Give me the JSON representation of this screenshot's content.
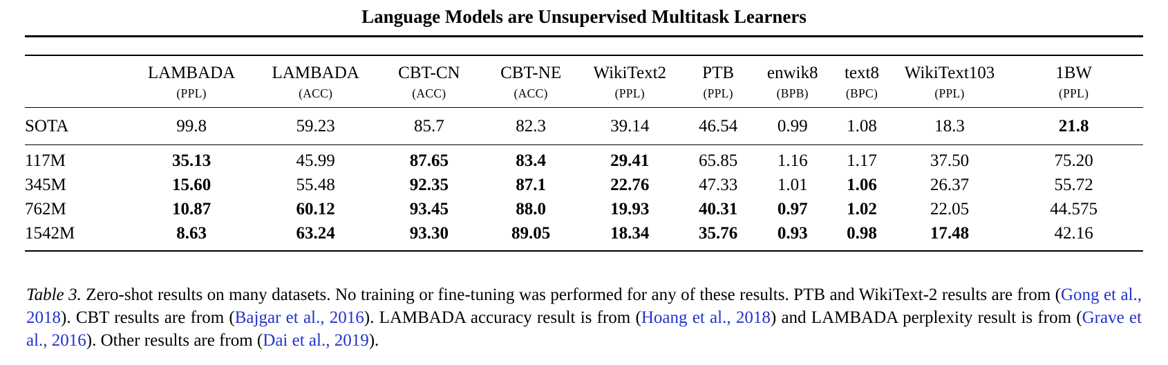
{
  "page": {
    "title": "Language Models are Unsupervised Multitask Learners"
  },
  "colors": {
    "cite": "#2233cc"
  },
  "table": {
    "columns": [
      {
        "name": "",
        "metric": ""
      },
      {
        "name": "LAMBADA",
        "metric": "(PPL)"
      },
      {
        "name": "LAMBADA",
        "metric": "(ACC)"
      },
      {
        "name": "CBT-CN",
        "metric": "(ACC)"
      },
      {
        "name": "CBT-NE",
        "metric": "(ACC)"
      },
      {
        "name": "WikiText2",
        "metric": "(PPL)"
      },
      {
        "name": "PTB",
        "metric": "(PPL)"
      },
      {
        "name": "enwik8",
        "metric": "(BPB)"
      },
      {
        "name": "text8",
        "metric": "(BPC)"
      },
      {
        "name": "WikiText103",
        "metric": "(PPL)"
      },
      {
        "name": "1BW",
        "metric": "(PPL)"
      }
    ],
    "sota_row": {
      "label": "SOTA",
      "cells": [
        {
          "v": "99.8",
          "b": false
        },
        {
          "v": "59.23",
          "b": false
        },
        {
          "v": "85.7",
          "b": false
        },
        {
          "v": "82.3",
          "b": false
        },
        {
          "v": "39.14",
          "b": false
        },
        {
          "v": "46.54",
          "b": false
        },
        {
          "v": "0.99",
          "b": false
        },
        {
          "v": "1.08",
          "b": false
        },
        {
          "v": "18.3",
          "b": false
        },
        {
          "v": "21.8",
          "b": true
        }
      ]
    },
    "rows": [
      {
        "label": "117M",
        "cells": [
          {
            "v": "35.13",
            "b": true
          },
          {
            "v": "45.99",
            "b": false
          },
          {
            "v": "87.65",
            "b": true
          },
          {
            "v": "83.4",
            "b": true
          },
          {
            "v": "29.41",
            "b": true
          },
          {
            "v": "65.85",
            "b": false
          },
          {
            "v": "1.16",
            "b": false
          },
          {
            "v": "1.17",
            "b": false
          },
          {
            "v": "37.50",
            "b": false
          },
          {
            "v": "75.20",
            "b": false
          }
        ]
      },
      {
        "label": "345M",
        "cells": [
          {
            "v": "15.60",
            "b": true
          },
          {
            "v": "55.48",
            "b": false
          },
          {
            "v": "92.35",
            "b": true
          },
          {
            "v": "87.1",
            "b": true
          },
          {
            "v": "22.76",
            "b": true
          },
          {
            "v": "47.33",
            "b": false
          },
          {
            "v": "1.01",
            "b": false
          },
          {
            "v": "1.06",
            "b": true
          },
          {
            "v": "26.37",
            "b": false
          },
          {
            "v": "55.72",
            "b": false
          }
        ]
      },
      {
        "label": "762M",
        "cells": [
          {
            "v": "10.87",
            "b": true
          },
          {
            "v": "60.12",
            "b": true
          },
          {
            "v": "93.45",
            "b": true
          },
          {
            "v": "88.0",
            "b": true
          },
          {
            "v": "19.93",
            "b": true
          },
          {
            "v": "40.31",
            "b": true
          },
          {
            "v": "0.97",
            "b": true
          },
          {
            "v": "1.02",
            "b": true
          },
          {
            "v": "22.05",
            "b": false
          },
          {
            "v": "44.575",
            "b": false
          }
        ]
      },
      {
        "label": "1542M",
        "cells": [
          {
            "v": "8.63",
            "b": true
          },
          {
            "v": "63.24",
            "b": true
          },
          {
            "v": "93.30",
            "b": true
          },
          {
            "v": "89.05",
            "b": true
          },
          {
            "v": "18.34",
            "b": true
          },
          {
            "v": "35.76",
            "b": true
          },
          {
            "v": "0.93",
            "b": true
          },
          {
            "v": "0.98",
            "b": true
          },
          {
            "v": "17.48",
            "b": true
          },
          {
            "v": "42.16",
            "b": false
          }
        ]
      }
    ]
  },
  "caption": {
    "segments": [
      {
        "t": "Table 3.",
        "style": "label"
      },
      {
        "t": " Zero-shot results on many datasets. No training or fine-tuning was performed for any of these results. PTB and WikiText-2 results are from (",
        "style": "text"
      },
      {
        "t": "Gong et al., 2018",
        "style": "cite"
      },
      {
        "t": "). CBT results are from (",
        "style": "text"
      },
      {
        "t": "Bajgar et al., 2016",
        "style": "cite"
      },
      {
        "t": "). LAMBADA accuracy result is from (",
        "style": "text"
      },
      {
        "t": "Hoang et al., 2018",
        "style": "cite"
      },
      {
        "t": ") and LAMBADA perplexity result is from (",
        "style": "text"
      },
      {
        "t": "Grave et al., 2016",
        "style": "cite"
      },
      {
        "t": "). Other results are from (",
        "style": "text"
      },
      {
        "t": "Dai et al., 2019",
        "style": "cite"
      },
      {
        "t": ").",
        "style": "text"
      }
    ]
  }
}
